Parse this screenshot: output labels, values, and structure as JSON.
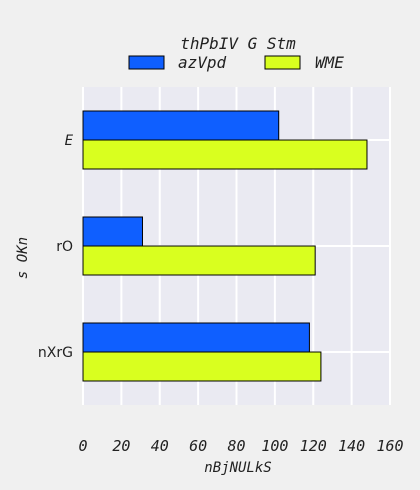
{
  "chart_data": {
    "type": "bar",
    "orientation": "horizontal",
    "title": "thPbIV G Stm",
    "xlabel": "nBjNULkS",
    "ylabel": "s  OKn",
    "categories": [
      "E",
      "rO",
      "nXrG"
    ],
    "xlim": [
      0,
      160
    ],
    "xticks": [
      "0",
      "20",
      "40",
      "60",
      "80",
      "100",
      "120",
      "140",
      "160"
    ],
    "grid": true,
    "legend_position": "top-center",
    "series": [
      {
        "name": "azVpd",
        "color": "#0f5fff",
        "values": [
          102,
          31,
          118
        ]
      },
      {
        "name": "WME",
        "color": "#d9ff1f",
        "values": [
          148,
          121,
          124
        ]
      }
    ]
  }
}
